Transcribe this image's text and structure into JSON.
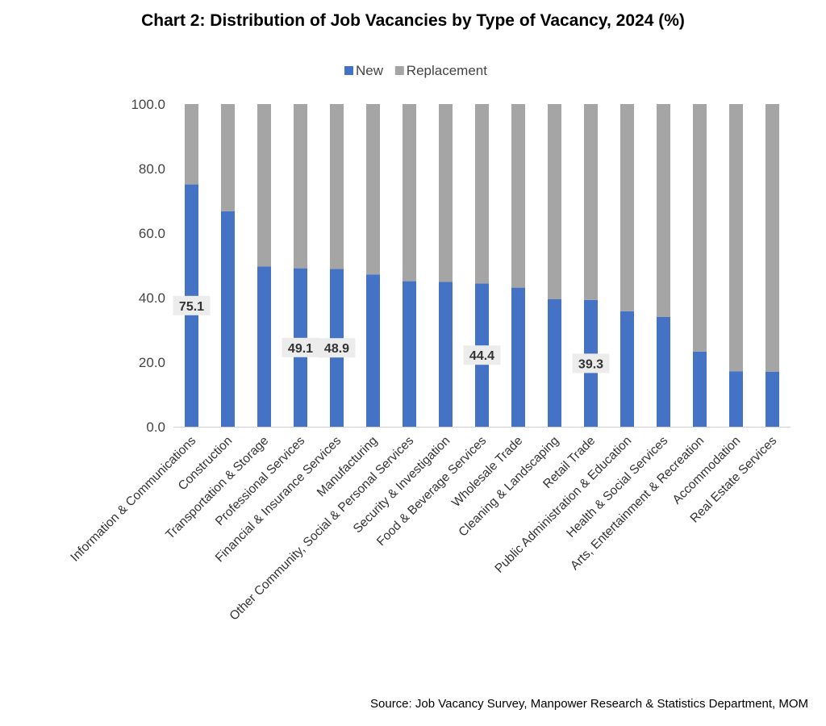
{
  "title": "Chart 2: Distribution of Job Vacancies by Type of Vacancy, 2024 (%)",
  "source": "Source: Job Vacancy Survey, Manpower Research & Statistics Department, MOM",
  "chart_data": {
    "type": "bar",
    "stacked": true,
    "title": "Chart 2: Distribution of Job Vacancies by Type of Vacancy, 2024 (%)",
    "xlabel": "",
    "ylabel": "",
    "ylim": [
      0,
      100
    ],
    "y_ticks": [
      "0.0",
      "20.0",
      "40.0",
      "60.0",
      "80.0",
      "100.0"
    ],
    "grid": false,
    "legend_position": "top",
    "categories": [
      "Information & Communications",
      "Construction",
      "Transportation & Storage",
      "Professional Services",
      "Financial & Insurance Services",
      "Manufacturing",
      "Other Community, Social & Personal Services",
      "Security & Investigation",
      "Food & Beverage Services",
      "Wholesale Trade",
      "Cleaning & Landscaping",
      "Retail Trade",
      "Public Administration & Education",
      "Health & Social Services",
      "Arts, Entertainment & Recreation",
      "Accommodation",
      "Real Estate Services"
    ],
    "series": [
      {
        "name": "New",
        "color": "#4472C4",
        "values": [
          75.1,
          66.8,
          49.7,
          49.1,
          48.9,
          47.2,
          45.1,
          44.9,
          44.4,
          43.1,
          39.5,
          39.3,
          35.8,
          34.0,
          23.3,
          17.2,
          17.0
        ]
      },
      {
        "name": "Replacement",
        "color": "#A5A5A5",
        "values": [
          24.9,
          33.2,
          50.3,
          50.9,
          51.1,
          52.8,
          54.9,
          55.1,
          55.6,
          56.9,
          60.5,
          60.7,
          64.2,
          66.0,
          76.7,
          82.8,
          83.0
        ]
      }
    ],
    "data_labels": [
      {
        "category": "Information & Communications",
        "text": "75.1"
      },
      {
        "category": "Professional Services",
        "text": "49.1"
      },
      {
        "category": "Financial & Insurance Services",
        "text": "48.9"
      },
      {
        "category": "Food & Beverage Services",
        "text": "44.4"
      },
      {
        "category": "Retail Trade",
        "text": "39.3"
      }
    ]
  }
}
